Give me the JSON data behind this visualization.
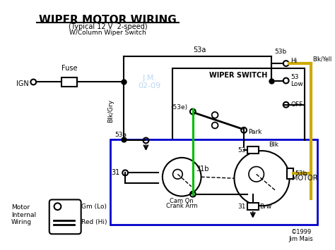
{
  "title": "WIPER MOTOR WIRING",
  "subtitle1": "(Typical 12 V  2-speed)",
  "subtitle2": "W/Column Wiper Switch",
  "bg_color": "#ffffff",
  "wire_color": "#000000",
  "yellow_wire": "#ccaa00",
  "green_wire": "#00bb00",
  "blue_box_color": "#0000cc",
  "watermark_color": "#aaccee",
  "copyright": "©1999\nJim Mais"
}
